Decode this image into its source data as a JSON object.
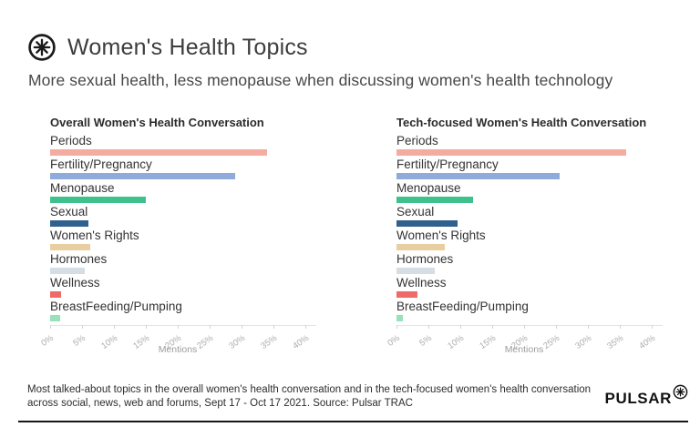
{
  "header": {
    "title": "Women's Health Topics",
    "subtitle": "More sexual health, less menopause when discussing women's health technology",
    "logo_icon": "pulsar-asterisk-icon"
  },
  "chart_data": [
    {
      "type": "bar",
      "orientation": "horizontal",
      "title": "Overall Women's Health Conversation",
      "categories": [
        "Periods",
        "Fertility/Pregnancy",
        "Menopause",
        "Sexual",
        "Women's Rights",
        "Hormones",
        "Wellness",
        "BreastFeeding/Pumping"
      ],
      "values": [
        34,
        29,
        15,
        6,
        6.3,
        5.4,
        1.7,
        1.5
      ],
      "colors": [
        "#F5ACA0",
        "#8FABDC",
        "#3EC18D",
        "#31608E",
        "#E9CEA2",
        "#D4DEE4",
        "#EE6B68",
        "#97E2B9"
      ],
      "xlabel": "Mentions",
      "xlim": [
        0,
        40
      ],
      "xticks": [
        "0%",
        "5%",
        "10%",
        "15%",
        "20%",
        "25%",
        "30%",
        "35%",
        "40%"
      ],
      "grid": false,
      "legend": false
    },
    {
      "type": "bar",
      "orientation": "horizontal",
      "title": "Tech-focused Women's Health Conversation",
      "categories": [
        "Periods",
        "Fertility/Pregnancy",
        "Menopause",
        "Sexual",
        "Women's Rights",
        "Hormones",
        "Wellness",
        "BreastFeeding/Pumping"
      ],
      "values": [
        36,
        25.5,
        12,
        9.5,
        7.5,
        6,
        3.3,
        1
      ],
      "colors": [
        "#F5ACA0",
        "#8FABDC",
        "#3EC18D",
        "#31608E",
        "#E9CEA2",
        "#D4DEE4",
        "#EE6B68",
        "#97E2B9"
      ],
      "xlabel": "Mentions",
      "xlim": [
        0,
        40
      ],
      "xticks": [
        "0%",
        "5%",
        "10%",
        "15%",
        "20%",
        "25%",
        "30%",
        "35%",
        "40%"
      ],
      "grid": false,
      "legend": false
    }
  ],
  "footer": {
    "caption_lines": [
      "Most talked-about topics in the overall women's health conversation and in the tech-focused women's health conversation",
      "across social, news, web and forums, Sept 17 - Oct 17 2021. Source: Pulsar TRAC"
    ],
    "brand": "PULSAR",
    "brand_icon": "pulsar-asterisk-icon"
  }
}
